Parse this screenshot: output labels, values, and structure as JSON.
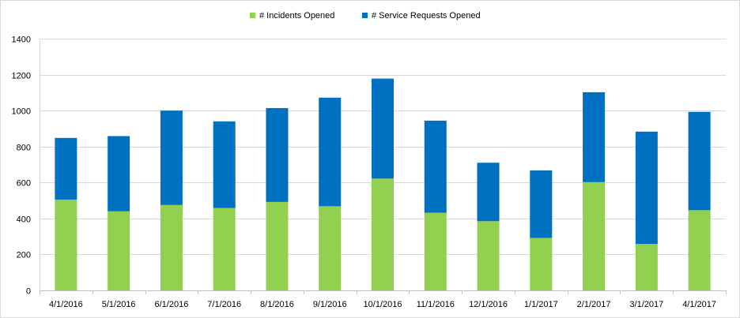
{
  "chart_data": {
    "type": "bar",
    "stacked": true,
    "categories": [
      "4/1/2016",
      "5/1/2016",
      "6/1/2016",
      "7/1/2016",
      "8/1/2016",
      "9/1/2016",
      "10/1/2016",
      "11/1/2016",
      "12/1/2016",
      "1/1/2017",
      "2/1/2017",
      "3/1/2017",
      "4/1/2017"
    ],
    "series": [
      {
        "name": "# Incidents Opened",
        "color": "#92d050",
        "values": [
          505,
          440,
          475,
          458,
          492,
          468,
          622,
          432,
          385,
          292,
          602,
          258,
          446
        ]
      },
      {
        "name": "# Service Requests Opened",
        "color": "#0070c0",
        "values": [
          343,
          418,
          525,
          482,
          522,
          604,
          556,
          512,
          325,
          375,
          500,
          625,
          547
        ]
      }
    ],
    "ylim": [
      0,
      1400
    ],
    "yticks": [
      0,
      200,
      400,
      600,
      800,
      1000,
      1200,
      1400
    ],
    "grid": true,
    "legend_position": "top",
    "title": "",
    "xlabel": "",
    "ylabel": ""
  }
}
